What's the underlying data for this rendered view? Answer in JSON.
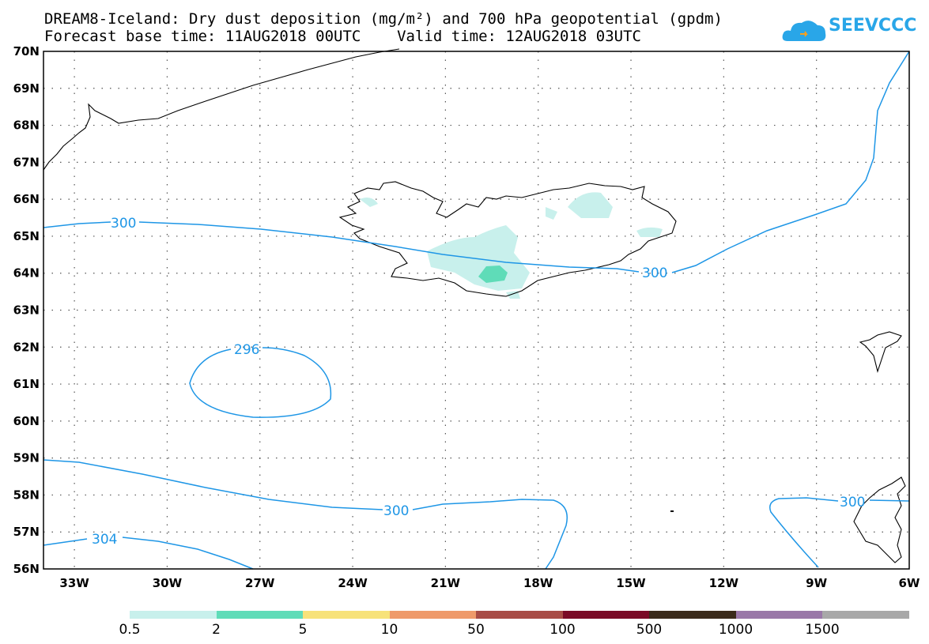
{
  "title": {
    "line1": "DREAM8-Iceland: Dry dust deposition (mg/m²) and 700 hPa geopotential (gpdm)",
    "line2": "Forecast base time: 11AUG2018 00UTC    Valid time: 12AUG2018 03UTC"
  },
  "logo": {
    "text": "SEEVCCC",
    "icon": "cloud-icon",
    "color": "#29a6e8"
  },
  "axes": {
    "lat_labels": [
      "70N",
      "69N",
      "68N",
      "67N",
      "66N",
      "65N",
      "64N",
      "63N",
      "62N",
      "61N",
      "60N",
      "59N",
      "58N",
      "57N",
      "56N"
    ],
    "lon_labels": [
      "33W",
      "30W",
      "27W",
      "24W",
      "21W",
      "18W",
      "15W",
      "12W",
      "9W",
      "6W"
    ],
    "lat_range": [
      56,
      70
    ],
    "lon_range": [
      -34,
      -6
    ],
    "grid": "dotted"
  },
  "contours": {
    "color": "#1e96e6",
    "labels": [
      "300",
      "300",
      "296",
      "300",
      "304",
      "300"
    ]
  },
  "colorbar": {
    "labels": [
      "0.5",
      "2",
      "5",
      "10",
      "50",
      "100",
      "500",
      "1000",
      "1500"
    ],
    "colors": [
      "#c8f0ec",
      "#5fdcb8",
      "#f7e27a",
      "#ef9a6a",
      "#a84c46",
      "#7a0a26",
      "#3a2a1a",
      "#9a78a8",
      "#a8a8a8"
    ]
  }
}
